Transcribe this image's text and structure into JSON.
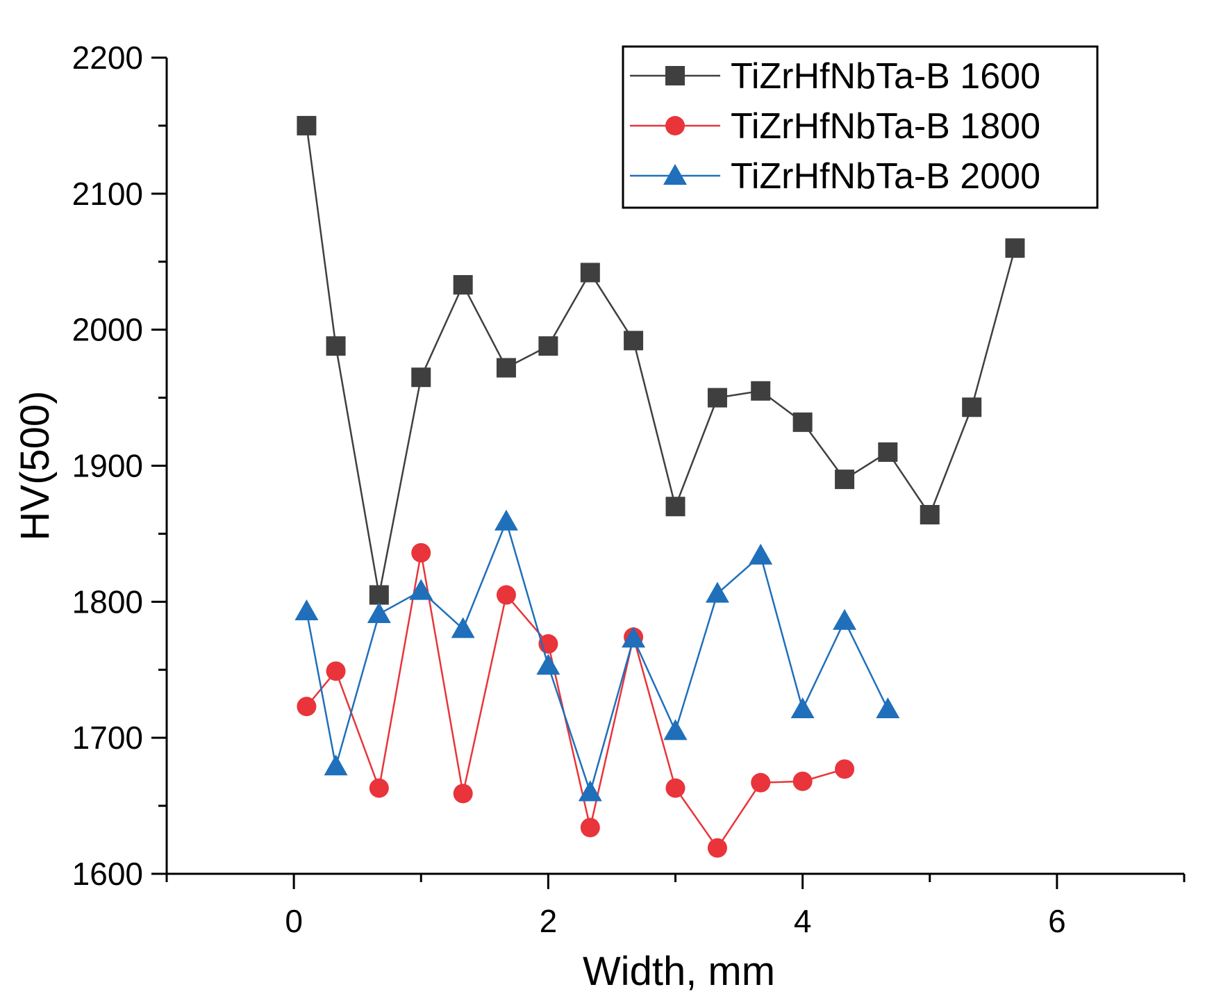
{
  "chart_data": {
    "type": "line",
    "title": "",
    "xlabel": "Width, mm",
    "ylabel": "HV(500)",
    "xlim": [
      -1,
      7
    ],
    "ylim": [
      1600,
      2200
    ],
    "xticks": [
      0,
      2,
      4,
      6
    ],
    "xminor": [
      -1,
      1,
      3,
      5,
      7
    ],
    "yticks": [
      1600,
      1700,
      1800,
      1900,
      2000,
      2100,
      2200
    ],
    "yminor": [
      1650,
      1750,
      1850,
      1950,
      2050,
      2150
    ],
    "legend_position": "top-right",
    "series": [
      {
        "name": "TiZrHfNbTa-B 1600",
        "color": "#3f3f3f",
        "marker": "square",
        "x": [
          0.1,
          0.33,
          0.67,
          1.0,
          1.33,
          1.67,
          2.0,
          2.33,
          2.67,
          3.0,
          3.33,
          3.67,
          4.0,
          4.33,
          4.67,
          5.0,
          5.33,
          5.67
        ],
        "y": [
          2150,
          1988,
          1805,
          1965,
          2033,
          1972,
          1988,
          2042,
          1992,
          1870,
          1950,
          1955,
          1932,
          1890,
          1910,
          1864,
          1943,
          2060
        ]
      },
      {
        "name": "TiZrHfNbTa-B 1800",
        "color": "#e8343a",
        "marker": "circle",
        "x": [
          0.1,
          0.33,
          0.67,
          1.0,
          1.33,
          1.67,
          2.0,
          2.33,
          2.67,
          3.0,
          3.33,
          3.67,
          4.0,
          4.33
        ],
        "y": [
          1723,
          1749,
          1663,
          1836,
          1659,
          1805,
          1769,
          1634,
          1774,
          1663,
          1619,
          1667,
          1668,
          1677
        ]
      },
      {
        "name": "TiZrHfNbTa-B 2000",
        "color": "#1f6fba",
        "marker": "triangle",
        "x": [
          0.1,
          0.33,
          0.67,
          1.0,
          1.33,
          1.67,
          2.0,
          2.33,
          2.67,
          3.0,
          3.33,
          3.67,
          4.0,
          4.33,
          4.67
        ],
        "y": [
          1793,
          1679,
          1791,
          1808,
          1780,
          1859,
          1753,
          1660,
          1773,
          1705,
          1806,
          1834,
          1721,
          1786,
          1721
        ]
      }
    ]
  }
}
